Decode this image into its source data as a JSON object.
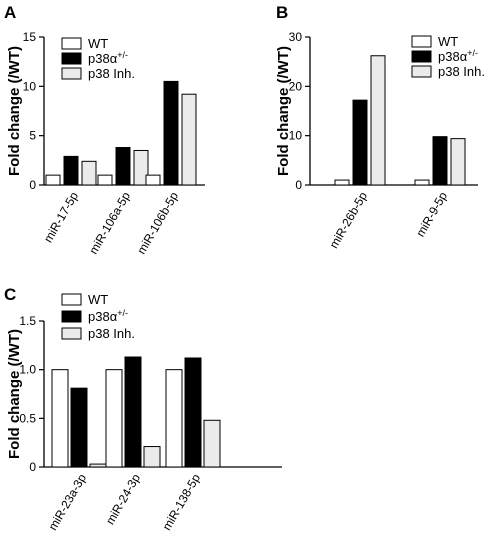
{
  "chart_data": [
    {
      "panel": "A",
      "type": "bar",
      "ylabel": "Fold change (/WT)",
      "ylim": [
        0,
        15
      ],
      "yticks": [
        0,
        5,
        10,
        15
      ],
      "categories": [
        "miR-17-5p",
        "miR-106a-5p",
        "miR-106b-5p"
      ],
      "series": [
        {
          "name": "WT",
          "color": "#ffffff",
          "values": [
            1.0,
            1.0,
            1.0
          ]
        },
        {
          "name": "p38α+/-",
          "color": "#000000",
          "values": [
            2.9,
            3.8,
            10.5
          ]
        },
        {
          "name": "p38 Inh.",
          "color": "#ebebeb",
          "values": [
            2.4,
            3.5,
            9.2
          ]
        }
      ]
    },
    {
      "panel": "B",
      "type": "bar",
      "ylabel": "Fold change (/WT)",
      "ylim": [
        0,
        30
      ],
      "yticks": [
        0,
        10,
        20,
        30
      ],
      "categories": [
        "miR-26b-5p",
        "miR-9-5p"
      ],
      "series": [
        {
          "name": "WT",
          "color": "#ffffff",
          "values": [
            1.0,
            1.0
          ]
        },
        {
          "name": "p38α+/-",
          "color": "#000000",
          "values": [
            17.2,
            9.8
          ]
        },
        {
          "name": "p38 Inh.",
          "color": "#ebebeb",
          "values": [
            26.2,
            9.4
          ]
        }
      ]
    },
    {
      "panel": "C",
      "type": "bar",
      "ylabel": "Fold change (/WT)",
      "ylim": [
        0,
        1.5
      ],
      "yticks": [
        "0",
        "0.5",
        "1.0",
        "1.5"
      ],
      "categories": [
        "miR-23a-3p",
        "miR-24-3p",
        "miR-138-5p"
      ],
      "series": [
        {
          "name": "WT",
          "color": "#ffffff",
          "values": [
            1.0,
            1.0,
            1.0
          ]
        },
        {
          "name": "p38α+/-",
          "color": "#000000",
          "values": [
            0.81,
            1.13,
            1.12
          ]
        },
        {
          "name": "p38 Inh.",
          "color": "#ebebeb",
          "values": [
            0.03,
            0.21,
            0.48
          ]
        }
      ]
    }
  ],
  "legend": {
    "wt": "WT",
    "mut_base": "p38α",
    "mut_sup": "+/-",
    "inh": "p38 Inh."
  }
}
